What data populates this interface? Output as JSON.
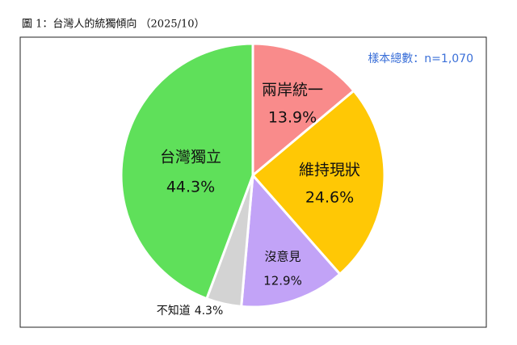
{
  "chart_data": {
    "type": "pie",
    "title": "圖 1：台灣人的統獨傾向 （2025/10）",
    "annotation": "樣本總數：n=1,070",
    "categories": [
      "兩岸統一",
      "維持現狀",
      "沒意見",
      "不知道",
      "台灣獨立"
    ],
    "values": [
      13.9,
      24.6,
      12.9,
      4.3,
      44.3
    ],
    "value_labels": [
      "13.9%",
      "24.6%",
      "12.9%",
      "4.3%",
      "44.3%"
    ],
    "colors": [
      "#f98b8b",
      "#ffc805",
      "#c2a3f7",
      "#d3d3d3",
      "#5fe05a"
    ]
  }
}
